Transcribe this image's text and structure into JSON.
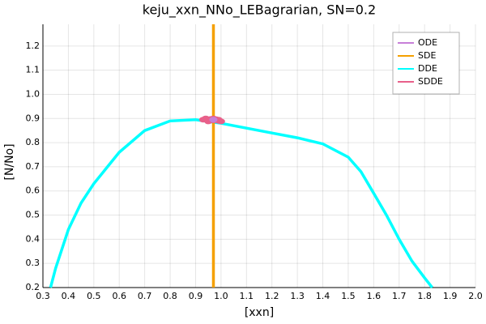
{
  "chart_data": {
    "type": "line",
    "title": "keju_xxn_NNo_LEBagrarian, SN=0.2",
    "x_label": "[xxn]",
    "y_label": "[N/No]",
    "xlim": [
      0.3,
      2.0
    ],
    "ylim": [
      0.2,
      1.29
    ],
    "xticks": [
      0.3,
      0.4,
      0.5,
      0.6,
      0.7,
      0.8,
      0.9,
      {
        "value": 1.0,
        "label": "1.0"
      },
      1.1,
      1.2,
      1.3,
      1.4,
      1.5,
      1.6,
      1.7,
      1.8,
      1.9,
      {
        "value": 2.0,
        "label": "2.0"
      }
    ],
    "yticks": [
      0.2,
      0.3,
      0.4,
      0.5,
      0.6,
      0.7,
      0.8,
      0.9,
      {
        "value": 1.0,
        "label": "1.0"
      },
      1.1,
      1.2
    ],
    "legend": "top-right",
    "series": [
      {
        "name": "ODE",
        "color": "#c77fd8",
        "mode": "scatter",
        "x": [
          0.97
        ],
        "values": [
          0.895
        ]
      },
      {
        "name": "SDE",
        "color": "#f5a000",
        "mode": "line",
        "x": [
          0.97,
          0.97
        ],
        "values": [
          0.2,
          1.29
        ]
      },
      {
        "name": "DDE",
        "color": "#00ffff",
        "mode": "line",
        "x": [
          0.33,
          0.35,
          0.4,
          0.45,
          0.5,
          0.6,
          0.7,
          0.8,
          0.9,
          1.0,
          1.1,
          1.2,
          1.3,
          1.4,
          1.5,
          1.55,
          1.6,
          1.65,
          1.7,
          1.75,
          1.8,
          1.83
        ],
        "values": [
          0.2,
          0.28,
          0.44,
          0.55,
          0.63,
          0.76,
          0.85,
          0.89,
          0.895,
          0.88,
          0.86,
          0.84,
          0.82,
          0.795,
          0.74,
          0.68,
          0.59,
          0.5,
          0.4,
          0.31,
          0.24,
          0.2
        ]
      },
      {
        "name": "SDDE",
        "color": "#e8608a",
        "mode": "scatter",
        "x": [
          0.93,
          0.94,
          0.95,
          0.96,
          0.97,
          0.98,
          0.99,
          1.0,
          0.95,
          0.97,
          0.99
        ],
        "values": [
          0.895,
          0.9,
          0.893,
          0.898,
          0.892,
          0.897,
          0.89,
          0.888,
          0.888,
          0.9,
          0.895
        ]
      }
    ]
  }
}
